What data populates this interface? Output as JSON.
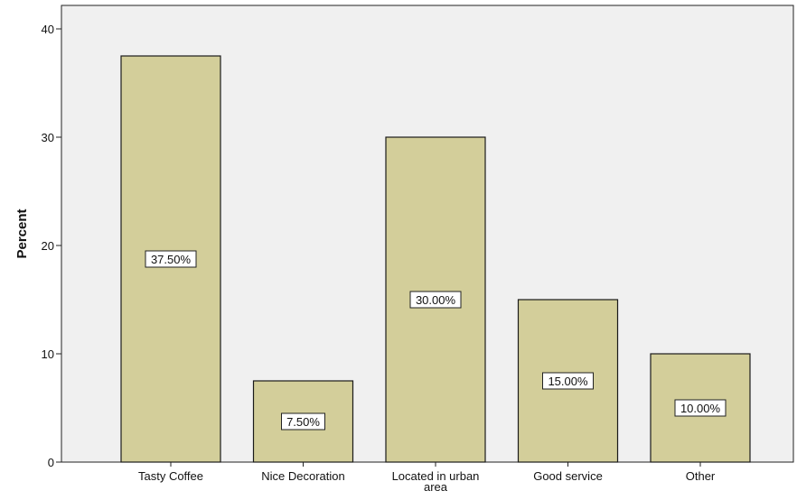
{
  "chart_data": {
    "type": "bar",
    "title": "",
    "xlabel": "",
    "ylabel": "Percent",
    "categories": [
      [
        "Tasty Coffee"
      ],
      [
        "Nice Decoration"
      ],
      [
        "Located in urban",
        "area"
      ],
      [
        "Good service"
      ],
      [
        "Other"
      ]
    ],
    "values": [
      37.5,
      7.5,
      30.0,
      15.0,
      10.0
    ],
    "data_labels": [
      "37.50%",
      "7.50%",
      "30.00%",
      "15.00%",
      "10.00%"
    ],
    "ylim": [
      0,
      40
    ],
    "yticks": [
      0,
      10,
      20,
      30,
      40
    ],
    "grid": false,
    "legend": "none",
    "colors": {
      "bar_fill": "#d3ce9a",
      "bar_stroke": "#1a1a1a",
      "plot_bg": "#f0f0f0",
      "label_bg": "#ffffff"
    }
  }
}
